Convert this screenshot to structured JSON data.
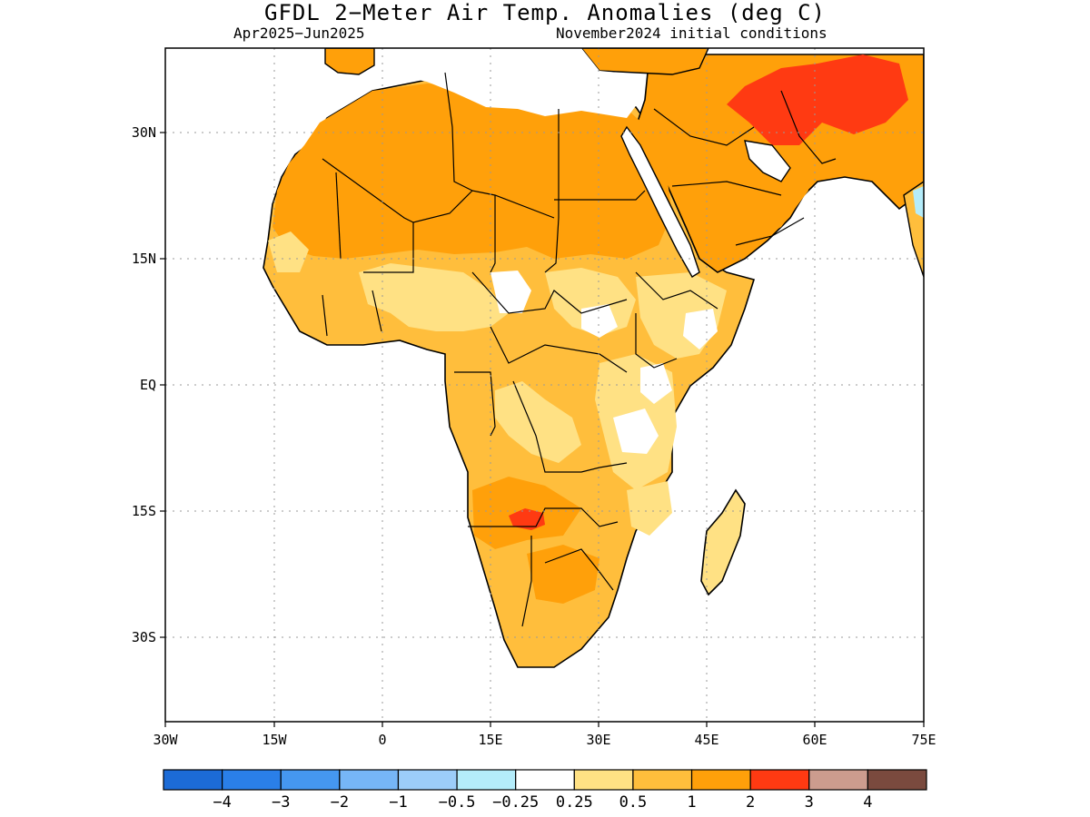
{
  "title": "GFDL 2−Meter Air Temp. Anomalies (deg C)",
  "period": "Apr2025−Jun2025",
  "init": "November2024 initial conditions",
  "lat_labels": [
    "30N",
    "15N",
    "EQ",
    "15S",
    "30S"
  ],
  "lon_labels": [
    "30W",
    "15W",
    "0",
    "15E",
    "30E",
    "45E",
    "60E",
    "75E"
  ],
  "colorbar": {
    "colors": [
      "#1c6bd6",
      "#2a7fe8",
      "#4597f0",
      "#76b6f7",
      "#9ccdf9",
      "#b4ecfa",
      "#ffffff",
      "#ffe184",
      "#ffbe3c",
      "#ffa00a",
      "#ff3a12",
      "#cc9c8e",
      "#7a4a3e"
    ],
    "labels": [
      "−4",
      "−3",
      "−2",
      "−1",
      "−0.5",
      "−0.25",
      "0.25",
      "0.5",
      "1",
      "2",
      "3",
      "4"
    ]
  },
  "legend_colors": {
    "mild": "#ffe184",
    "moderate": "#ffbe3c",
    "strong": "#ffa00a",
    "extreme": "#ff3a12",
    "neutral": "#ffffff",
    "cool": "#b4ecfa"
  }
}
